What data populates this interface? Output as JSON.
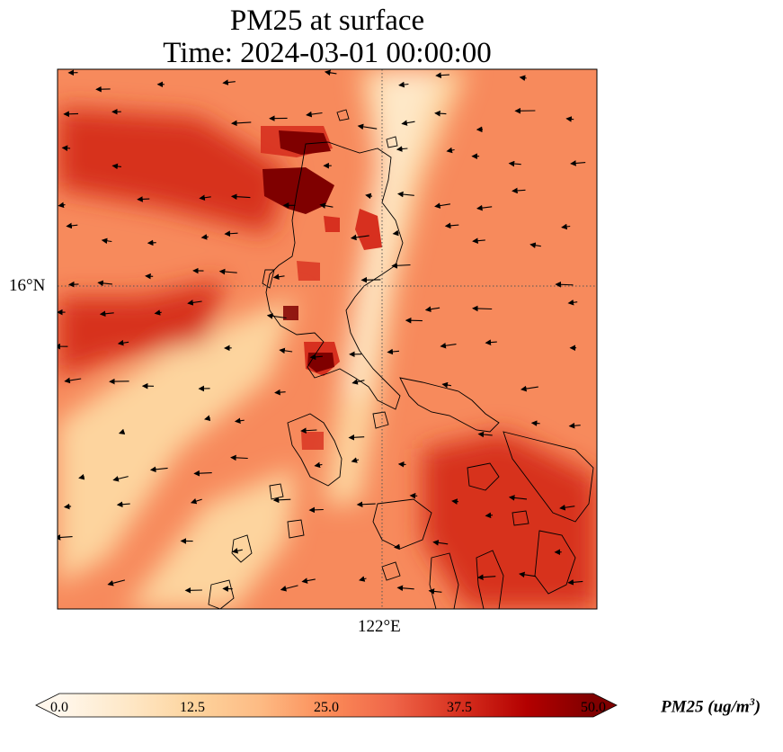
{
  "title": {
    "line1": "PM25 at surface",
    "line2": "Time: 2024-03-01 00:00:00"
  },
  "axes": {
    "lat_tick": "16°N",
    "lon_tick": "122°E",
    "gridline_style": "dotted"
  },
  "colorbar": {
    "label_prefix": "PM25 (ug/m",
    "label_exp": "3",
    "label_suffix": ")",
    "ticks": [
      "0.0",
      "12.5",
      "25.0",
      "37.5",
      "50.0"
    ],
    "min": 0,
    "max": 50,
    "extend": "both",
    "colormap": "OrRd",
    "colors": [
      "#fff7ec",
      "#fee8c8",
      "#fdd49e",
      "#fdbb84",
      "#fc8d59",
      "#ef6548",
      "#d7301f",
      "#b30000",
      "#7f0000"
    ]
  },
  "field_colors": {
    "background": "#f78a5c",
    "high": "#7f0000",
    "elevated": "#d7301f",
    "low": "#fdd49e",
    "very_low": "#fee8c8"
  },
  "vector_color": "#000000",
  "coastline_color": "#000000"
}
